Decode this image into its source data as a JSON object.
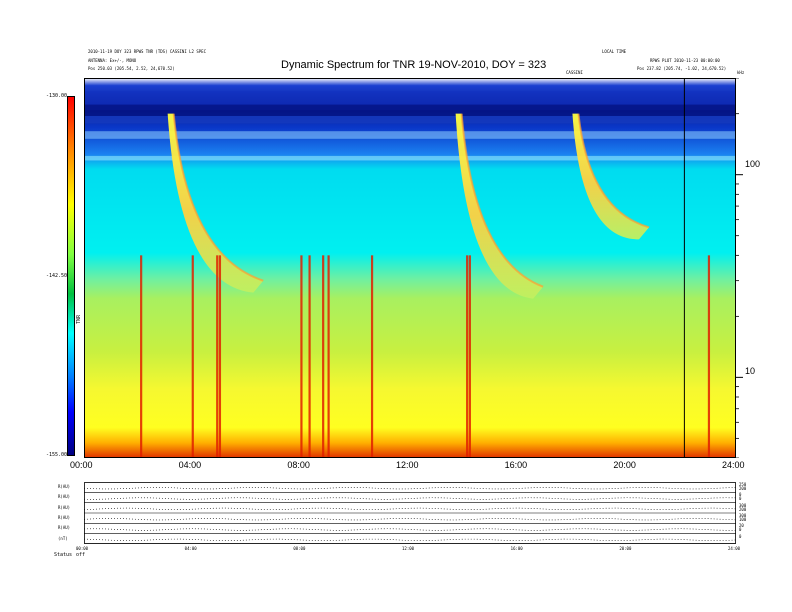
{
  "header": {
    "left_line1": "2010-11-19 DOY 323 RPWS TNR (TDS) CASSINI L2 SPEC",
    "left_line2": "ANTENNA: Ex+/-, MONO",
    "left_line3": "Pos    250.03 (205.54, 2.52, 24,670.52)",
    "right_line1": "LOCAL TIME",
    "right_line2": "RPWS PLOT 2010-11-23 00:00:00",
    "right_line3": "Pos    237.82 (205.74, -1.02, 24,670.52)",
    "center_mid": "CASSINI",
    "right_tick": "kHz"
  },
  "colors": {
    "background": "#ffffff",
    "dark_blue": "#0000a0",
    "blue": "#0a4fd8",
    "cyan": "#00e8f0",
    "green": "#7fe060",
    "yellow": "#ffff20",
    "orange": "#ffb000",
    "red": "#e02000"
  },
  "chart_data": {
    "type": "heatmap",
    "title": "Dynamic Spectrum for TNR 19-NOV-2010, DOY = 323",
    "xlabel": "",
    "ylabel": "",
    "x_ticks": [
      "00:00",
      "04:00",
      "08:00",
      "12:00",
      "16:00",
      "20:00",
      "24:00"
    ],
    "x_range_hours": [
      0,
      24
    ],
    "y_scale": "log",
    "y_range": [
      4,
      300
    ],
    "y_ticks": [
      "100",
      "10"
    ],
    "y_unit": "kHz",
    "colorbar": {
      "label": "TNR",
      "ticks": [
        "-130.00",
        "-142.50",
        "-155.00"
      ],
      "range": [
        -155,
        -130
      ]
    },
    "sweeping_bursts": [
      {
        "start_hour": 3.3,
        "end_hour": 6.6,
        "f_high": 200,
        "f_low": 30
      },
      {
        "start_hour": 13.9,
        "end_hour": 16.9,
        "f_high": 200,
        "f_low": 28
      },
      {
        "start_hour": 18.2,
        "end_hour": 20.8,
        "f_high": 200,
        "f_low": 55
      }
    ],
    "vertical_spikes_hours": [
      2.1,
      4.0,
      4.9,
      5.0,
      8.0,
      8.3,
      8.8,
      9.0,
      10.6,
      14.1,
      14.2,
      23.0
    ],
    "data_gap_hour": 22.1
  },
  "ephemeris": {
    "rows": [
      {
        "label": "R(AU)",
        "right_values": [
          "250",
          "200"
        ]
      },
      {
        "label": "R(AU)",
        "right_values": [
          "0",
          "0"
        ]
      },
      {
        "label": "R(AU)",
        "right_values": [
          "300",
          "200"
        ]
      },
      {
        "label": "R(AU)",
        "right_values": [
          "300",
          "100"
        ]
      },
      {
        "label": "R(AU)",
        "right_values": [
          "20",
          "0"
        ]
      },
      {
        "label": "(nT)",
        "right_values": [
          "0",
          ""
        ]
      }
    ],
    "x_ticks": [
      "00:00",
      "04:00",
      "08:00",
      "12:00",
      "16:00",
      "20:00",
      "24:00"
    ],
    "status_label": "Status",
    "status_value": "off"
  }
}
